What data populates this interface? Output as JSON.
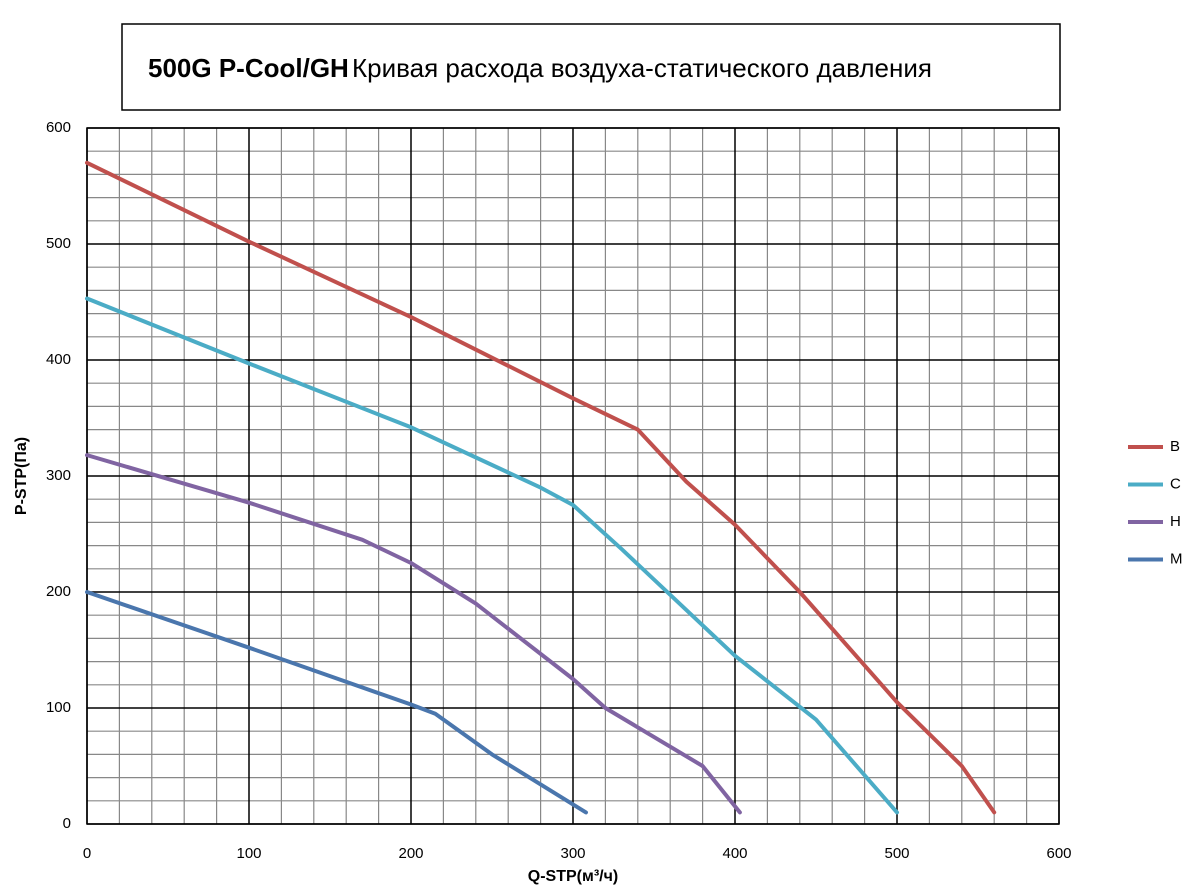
{
  "chart_data": {
    "type": "line",
    "title": "500G P-Cool/GH",
    "subtitle": "Кривая расхода воздуха-статического давления",
    "xlabel": "Q-STP(м³/ч)",
    "ylabel": "P-STP(Па)",
    "xlim": [
      0,
      600
    ],
    "xticks": [
      0,
      100,
      200,
      300,
      400,
      500,
      600
    ],
    "ylim": [
      0,
      600
    ],
    "yticks": [
      0,
      100,
      200,
      300,
      400,
      500,
      600
    ],
    "grid": true,
    "legend": "right",
    "series": [
      {
        "name": "B",
        "color": "#c0504d",
        "x": [
          0,
          100,
          200,
          300,
          340,
          370,
          400,
          440,
          500,
          540,
          560
        ],
        "values": [
          570,
          502,
          437,
          367,
          340,
          295,
          258,
          200,
          105,
          50,
          10
        ]
      },
      {
        "name": "C",
        "color": "#4bacc6",
        "x": [
          0,
          100,
          200,
          280,
          300,
          330,
          400,
          450,
          500
        ],
        "values": [
          453,
          397,
          342,
          290,
          275,
          237,
          145,
          90,
          10
        ]
      },
      {
        "name": "H",
        "color": "#8064a2",
        "x": [
          0,
          100,
          170,
          200,
          240,
          300,
          320,
          380,
          403
        ],
        "values": [
          318,
          277,
          245,
          225,
          190,
          125,
          100,
          50,
          10
        ]
      },
      {
        "name": "M",
        "color": "#4a76ad",
        "x": [
          0,
          100,
          200,
          215,
          250,
          308
        ],
        "values": [
          200,
          152,
          103,
          95,
          60,
          10
        ]
      }
    ]
  }
}
